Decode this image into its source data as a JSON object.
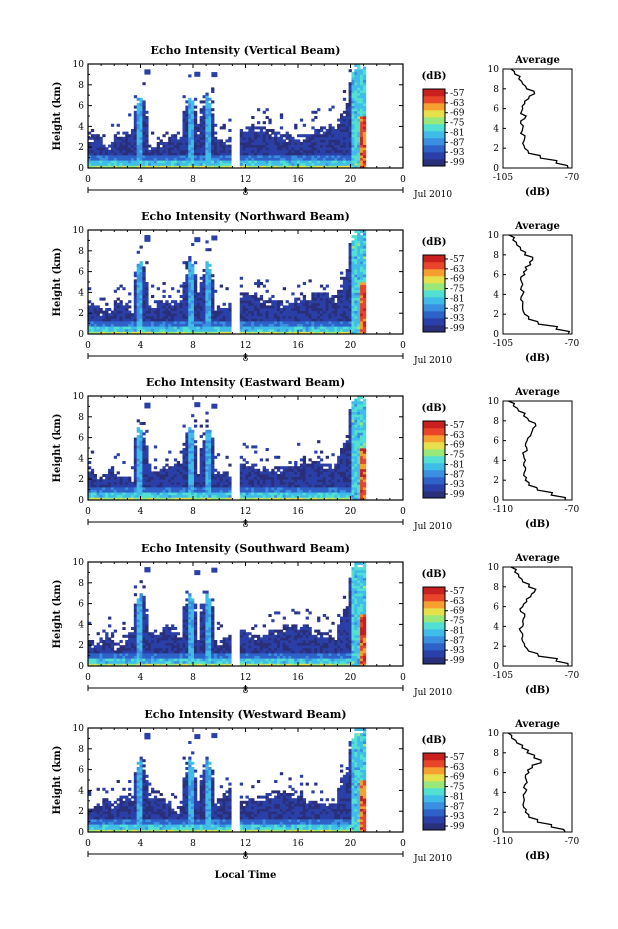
{
  "figure": {
    "xlabel": "Local Time",
    "date_label": "Jul 2010",
    "day_label": "8",
    "colorbar_unit": "(dB)",
    "profile_title": "Average",
    "profile_unit": "(dB)"
  },
  "colorbar": {
    "tick_labels": [
      "-57",
      "-63",
      "-69",
      "-75",
      "-81",
      "-87",
      "-93",
      "-99"
    ],
    "colors": [
      "#2a2f7a",
      "#2b3fa8",
      "#2f62c8",
      "#3a8fe0",
      "#3fbde8",
      "#52e0d2",
      "#9ae87a",
      "#e6e04a",
      "#f7a030",
      "#e8452a",
      "#c8201e"
    ]
  },
  "chart_data": [
    {
      "type": "heatmap",
      "title": "Echo Intensity (Vertical Beam)",
      "ylabel": "Height (km)",
      "xlim": [
        0,
        24
      ],
      "ylim": [
        0,
        10
      ],
      "xticks": [
        "0",
        "4",
        "8",
        "12",
        "16",
        "20",
        "0"
      ],
      "yticks": [
        "0",
        "2",
        "4",
        "6",
        "8",
        "10"
      ],
      "data_gap_hours": [
        10.9,
        11.5
      ],
      "convective_towers_hours": [
        4.0,
        7.8,
        9.1,
        20.3
      ],
      "profile": {
        "title": "Average",
        "xlabel": "(dB)",
        "xticks": [
          "-105",
          "-70"
        ],
        "xlim": [
          -105,
          -70
        ],
        "yticks": [
          "0",
          "2",
          "4",
          "6",
          "8",
          "10"
        ],
        "height_km": [
          0,
          0.5,
          1,
          1.5,
          2,
          2.5,
          3,
          3.5,
          4,
          4.5,
          5,
          5.5,
          6,
          6.5,
          7,
          7.5,
          8,
          8.5,
          9,
          9.5,
          10
        ],
        "mean_db": [
          -72,
          -78,
          -86,
          -92,
          -94,
          -95,
          -94,
          -96,
          -95,
          -96,
          -94,
          -96,
          -95,
          -94,
          -92,
          -89,
          -93,
          -95,
          -97,
          -99,
          -101
        ]
      }
    },
    {
      "type": "heatmap",
      "title": "Echo Intensity (Northward Beam)",
      "ylabel": "Height (km)",
      "xlim": [
        0,
        24
      ],
      "ylim": [
        0,
        10
      ],
      "xticks": [
        "0",
        "4",
        "8",
        "12",
        "16",
        "20",
        "0"
      ],
      "yticks": [
        "0",
        "2",
        "4",
        "6",
        "8",
        "10"
      ],
      "data_gap_hours": [
        10.9,
        11.5
      ],
      "convective_towers_hours": [
        4.0,
        7.8,
        9.1,
        20.3
      ],
      "profile": {
        "title": "Average",
        "xlabel": "(dB)",
        "xticks": [
          "-105",
          "-70"
        ],
        "xlim": [
          -105,
          -70
        ],
        "yticks": [
          "0",
          "2",
          "4",
          "6",
          "8",
          "10"
        ],
        "height_km": [
          0,
          0.5,
          1,
          1.5,
          2,
          2.5,
          3,
          3.5,
          4,
          4.5,
          5,
          5.5,
          6,
          6.5,
          7,
          7.5,
          8,
          8.5,
          9,
          9.5,
          10
        ],
        "mean_db": [
          -72,
          -78,
          -87,
          -92,
          -94,
          -95,
          -95,
          -96,
          -95,
          -96,
          -95,
          -96,
          -94,
          -93,
          -91,
          -90,
          -94,
          -96,
          -98,
          -100,
          -102
        ]
      }
    },
    {
      "type": "heatmap",
      "title": "Echo Intensity (Eastward Beam)",
      "ylabel": "Height (km)",
      "xlim": [
        0,
        24
      ],
      "ylim": [
        0,
        10
      ],
      "xticks": [
        "0",
        "4",
        "8",
        "12",
        "16",
        "20",
        "0"
      ],
      "yticks": [
        "0",
        "2",
        "4",
        "6",
        "8",
        "10"
      ],
      "data_gap_hours": [
        10.9,
        11.5
      ],
      "convective_towers_hours": [
        4.0,
        7.8,
        9.1,
        20.3
      ],
      "profile": {
        "title": "Average",
        "xlabel": "(dB)",
        "xticks": [
          "-110",
          "-70"
        ],
        "xlim": [
          -110,
          -70
        ],
        "yticks": [
          "0",
          "2",
          "4",
          "6",
          "8",
          "10"
        ],
        "height_km": [
          0,
          0.5,
          1,
          1.5,
          2,
          2.5,
          3,
          3.5,
          4,
          4.5,
          5,
          5.5,
          6,
          6.5,
          7,
          7.5,
          8,
          8.5,
          9,
          9.5,
          10
        ],
        "mean_db": [
          -74,
          -82,
          -90,
          -95,
          -97,
          -98,
          -97,
          -98,
          -97,
          -98,
          -96,
          -97,
          -96,
          -94,
          -93,
          -91,
          -95,
          -98,
          -101,
          -104,
          -107
        ]
      }
    },
    {
      "type": "heatmap",
      "title": "Echo Intensity (Southward Beam)",
      "ylabel": "Height (km)",
      "xlim": [
        0,
        24
      ],
      "ylim": [
        0,
        10
      ],
      "xticks": [
        "0",
        "4",
        "8",
        "12",
        "16",
        "20",
        "0"
      ],
      "yticks": [
        "0",
        "2",
        "4",
        "6",
        "8",
        "10"
      ],
      "data_gap_hours": [
        10.9,
        11.5
      ],
      "convective_towers_hours": [
        4.0,
        7.8,
        9.1,
        20.3
      ],
      "profile": {
        "title": "Average",
        "xlabel": "(dB)",
        "xticks": [
          "-105",
          "-70"
        ],
        "xlim": [
          -105,
          -70
        ],
        "yticks": [
          "0",
          "2",
          "4",
          "6",
          "8",
          "10"
        ],
        "height_km": [
          0,
          0.5,
          1,
          1.5,
          2,
          2.5,
          3,
          3.5,
          4,
          4.5,
          5,
          5.5,
          6,
          6.5,
          7,
          7.5,
          8,
          8.5,
          9,
          9.5,
          10
        ],
        "mean_db": [
          -72,
          -78,
          -87,
          -92,
          -94,
          -95,
          -95,
          -96,
          -95,
          -95,
          -94,
          -96,
          -95,
          -93,
          -91,
          -89,
          -92,
          -95,
          -97,
          -99,
          -101
        ]
      }
    },
    {
      "type": "heatmap",
      "title": "Echo Intensity (Westward Beam)",
      "ylabel": "Height (km)",
      "xlim": [
        0,
        24
      ],
      "ylim": [
        0,
        10
      ],
      "xticks": [
        "0",
        "4",
        "8",
        "12",
        "16",
        "20",
        "0"
      ],
      "yticks": [
        "0",
        "2",
        "4",
        "6",
        "8",
        "10"
      ],
      "data_gap_hours": [
        10.9,
        11.5
      ],
      "convective_towers_hours": [
        4.0,
        7.8,
        9.1,
        20.3
      ],
      "profile": {
        "title": "Average",
        "xlabel": "(dB)",
        "xticks": [
          "-110",
          "-70"
        ],
        "xlim": [
          -110,
          -70
        ],
        "yticks": [
          "0",
          "2",
          "4",
          "6",
          "8",
          "10"
        ],
        "height_km": [
          0,
          0.5,
          1,
          1.5,
          2,
          2.5,
          3,
          3.5,
          4,
          4.5,
          5,
          5.5,
          6,
          6.5,
          7,
          7.5,
          8,
          8.5,
          9,
          9.5,
          10
        ],
        "mean_db": [
          -74,
          -82,
          -90,
          -95,
          -97,
          -98,
          -98,
          -98,
          -97,
          -98,
          -96,
          -97,
          -95,
          -93,
          -88,
          -92,
          -96,
          -99,
          -102,
          -105,
          -107
        ]
      }
    }
  ]
}
